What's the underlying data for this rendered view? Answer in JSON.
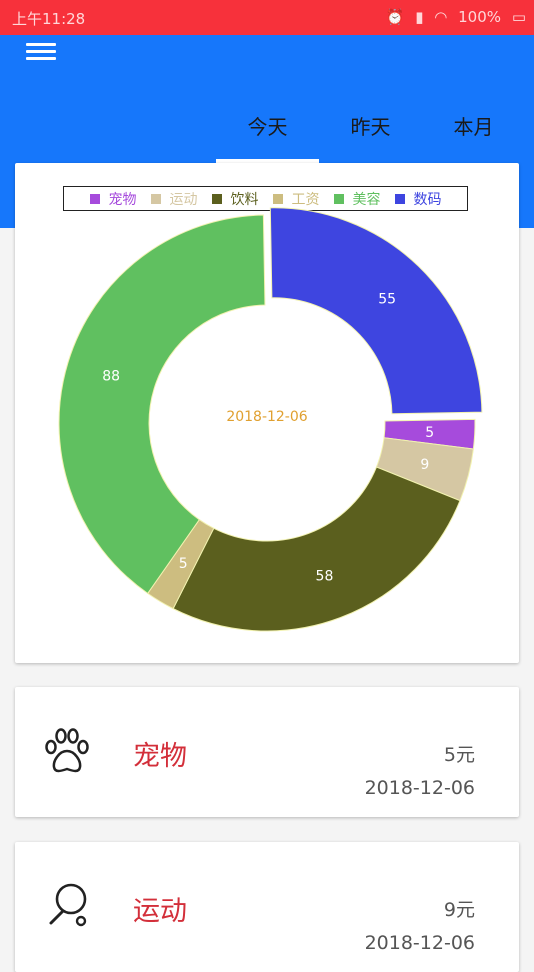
{
  "status_bar": {
    "time": "上午11:28",
    "battery": "100%"
  },
  "tabs": [
    {
      "label": "今天",
      "active": true
    },
    {
      "label": "昨天",
      "active": false
    },
    {
      "label": "本月",
      "active": false
    }
  ],
  "chart_data": {
    "type": "pie",
    "variant": "donut",
    "center_text": "2018-12-06",
    "legend_placement": "top",
    "slices": [
      {
        "label": "宠物",
        "value": 5,
        "color": "#a64bdc"
      },
      {
        "label": "运动",
        "value": 9,
        "color": "#d5c7a3"
      },
      {
        "label": "饮料",
        "value": 58,
        "color": "#5b5f1e"
      },
      {
        "label": "工资",
        "value": 5,
        "color": "#cdbd80"
      },
      {
        "label": "美容",
        "value": 88,
        "color": "#60c060"
      },
      {
        "label": "数码",
        "value": 55,
        "color": "#3e45e0"
      }
    ]
  },
  "records": [
    {
      "name": "宠物",
      "amount": "5元",
      "date": "2018-12-06",
      "icon": "paw-icon"
    },
    {
      "name": "运动",
      "amount": "9元",
      "date": "2018-12-06",
      "icon": "racket-icon"
    }
  ],
  "colors": {
    "status_bar": "#f7313b",
    "app_bar": "#1677fb",
    "record_name": "#d32f3a"
  }
}
